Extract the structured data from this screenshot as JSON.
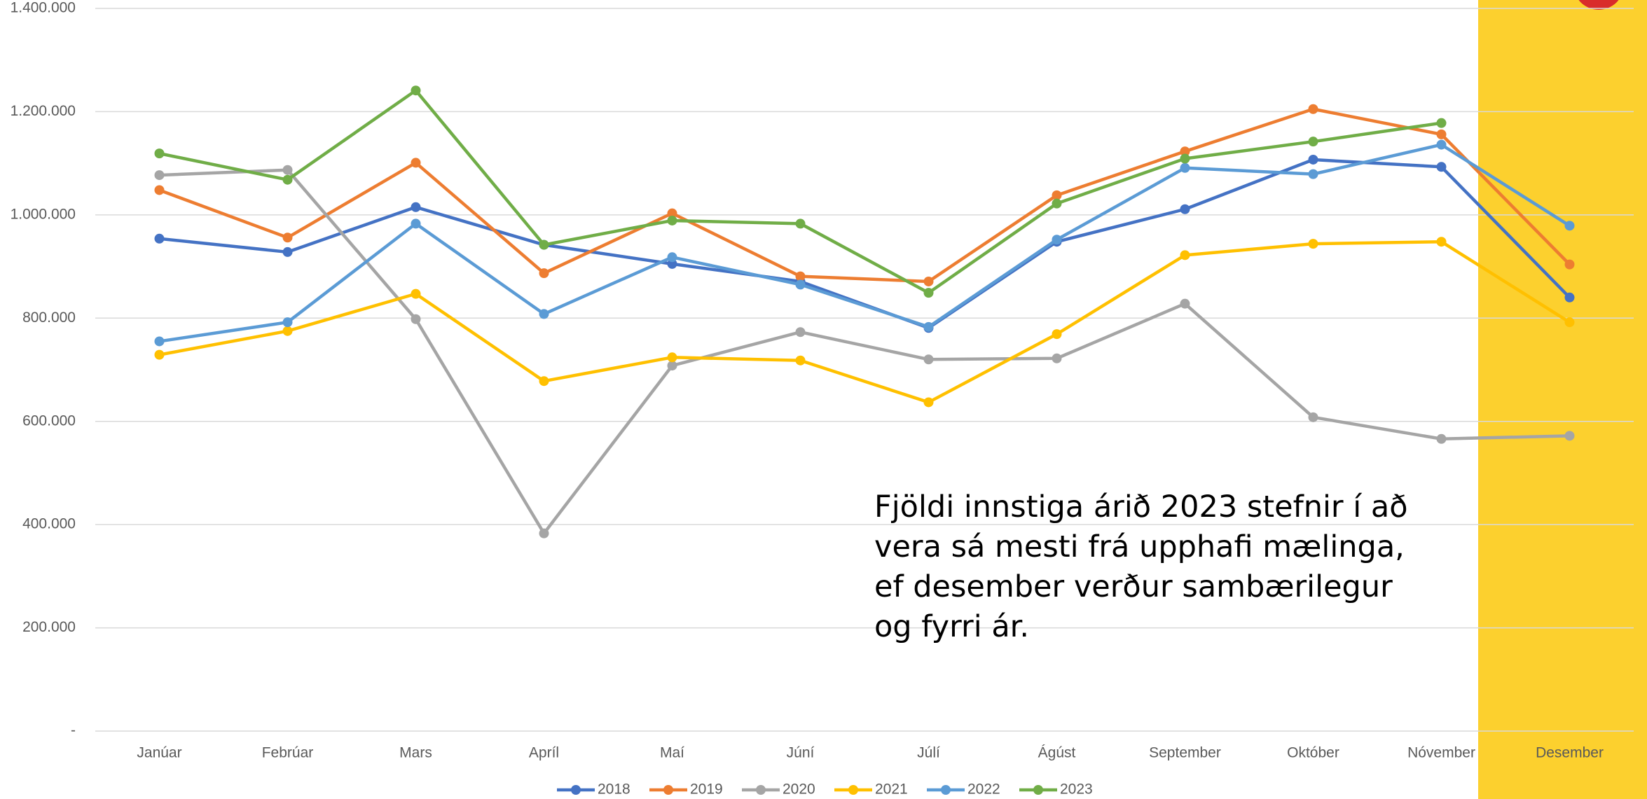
{
  "chart_data": {
    "type": "line",
    "categories": [
      "Janúar",
      "Febrúar",
      "Mars",
      "Apríl",
      "Maí",
      "Júní",
      "Júlí",
      "Ágúst",
      "September",
      "Október",
      "Nóvember",
      "Desember"
    ],
    "series": [
      {
        "name": "2018",
        "color": "#4472c4",
        "values": [
          954000,
          928000,
          1015000,
          942000,
          905000,
          871000,
          781000,
          948000,
          1011000,
          1107000,
          1093000,
          840000
        ]
      },
      {
        "name": "2019",
        "color": "#ed7d31",
        "values": [
          1048000,
          956000,
          1101000,
          887000,
          1003000,
          881000,
          871000,
          1038000,
          1123000,
          1205000,
          1156000,
          904000
        ]
      },
      {
        "name": "2020",
        "color": "#a5a5a5",
        "values": [
          1077000,
          1087000,
          798000,
          383000,
          708000,
          773000,
          720000,
          722000,
          828000,
          608000,
          566000,
          572000
        ]
      },
      {
        "name": "2021",
        "color": "#ffc000",
        "values": [
          729000,
          775000,
          847000,
          678000,
          724000,
          718000,
          637000,
          769000,
          922000,
          944000,
          948000,
          792000
        ]
      },
      {
        "name": "2022",
        "color": "#5b9bd5",
        "values": [
          755000,
          792000,
          983000,
          808000,
          918000,
          865000,
          783000,
          952000,
          1091000,
          1079000,
          1136000,
          979000
        ]
      },
      {
        "name": "2023",
        "color": "#70ad47",
        "values": [
          1119000,
          1068000,
          1241000,
          942000,
          989000,
          983000,
          849000,
          1022000,
          1109000,
          1142000,
          1178000,
          null
        ]
      }
    ],
    "ylim": [
      0,
      1400000
    ],
    "yticks": [
      {
        "value": 0,
        "label": "-"
      },
      {
        "value": 200000,
        "label": "200.000"
      },
      {
        "value": 400000,
        "label": "400.000"
      },
      {
        "value": 600000,
        "label": "600.000"
      },
      {
        "value": 800000,
        "label": "800.000"
      },
      {
        "value": 1000000,
        "label": "1.000.000"
      },
      {
        "value": 1200000,
        "label": "1.200.000"
      },
      {
        "value": 1400000,
        "label": "1.400.000"
      }
    ],
    "grid": true,
    "legend": "bottom",
    "annotation": "Fjöldi innstiga árið 2023 stefnir í að vera sá mesti frá upphafi mælinga, ef desember verður sambærilegur og fyrri ár."
  }
}
